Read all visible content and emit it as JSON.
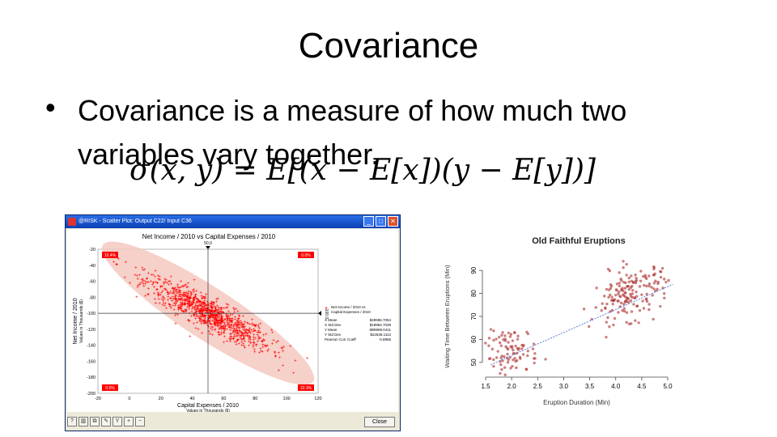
{
  "slide": {
    "title": "Covariance",
    "bullet": "Covariance is a measure of how much two variables vary together.",
    "formula": "σ(x, y) = E[(x − E[x])(y − E[y])]"
  },
  "risk_window": {
    "title": "@RISK - Scatter Plot: Output C22/ Input C36",
    "close_label": "Close",
    "tool_icons": [
      "help-icon",
      "chart-icon",
      "copy-icon",
      "settings-icon",
      "filter-icon",
      "zoom-in-icon",
      "zoom-out-icon"
    ]
  },
  "chart_data": [
    {
      "type": "scatter",
      "title": "Net Income / 2010 vs Capital Expenses / 2010",
      "xlabel": "Capital Expenses / 2010",
      "xlabel_sub": "Values in Thousands ($)",
      "ylabel": "Net Income / 2010",
      "ylabel_sub": "Values in Thousands ($)",
      "xlim": [
        -20,
        120
      ],
      "ylim": [
        -200,
        -20
      ],
      "xticks": [
        -20,
        0,
        20,
        40,
        60,
        80,
        100,
        120
      ],
      "yticks": [
        -20,
        -40,
        -60,
        -80,
        -100,
        -120,
        -140,
        -160,
        -180,
        -200
      ],
      "x_marker": "50.0",
      "y_marker": "-100.0",
      "corner_labels": {
        "top_left": "10.4%",
        "top_right": "0.0%",
        "bottom_left": "0.0%",
        "bottom_right": "10.3%"
      },
      "color": "#ff0000",
      "ellipse_color": "#f4c9c0",
      "series_pattern": "y = -100 - 1.0*(x - 50) + noise, n≈1000",
      "legend": {
        "series": "Net Income / 2010 vs Capital Expenses / 2010",
        "stats": [
          {
            "label": "X Mean",
            "value": "$49996.7084"
          },
          {
            "label": "X Std Dev",
            "value": "$19984.7039"
          },
          {
            "label": "Y Mean",
            "value": "-$99998.0411"
          },
          {
            "label": "Y Std Dev",
            "value": "$22536.1112"
          },
          {
            "label": "Pearson Corr Coeff",
            "value": "-0.8956"
          }
        ]
      }
    },
    {
      "type": "scatter",
      "title": "Old Faithful Eruptions",
      "xlabel": "Eruption Duration (Min)",
      "ylabel": "Waiting Time Between Eruptions (Min)",
      "xlim": [
        1.5,
        5.0
      ],
      "ylim": [
        45,
        95
      ],
      "xticks": [
        1.5,
        2.0,
        2.5,
        3.0,
        3.5,
        4.0,
        4.5,
        5.0
      ],
      "yticks": [
        50,
        60,
        70,
        80,
        90
      ],
      "trend_line": {
        "x": [
          1.6,
          5.1
        ],
        "y": [
          49,
          84
        ]
      },
      "color": "#b03a3a"
    }
  ]
}
